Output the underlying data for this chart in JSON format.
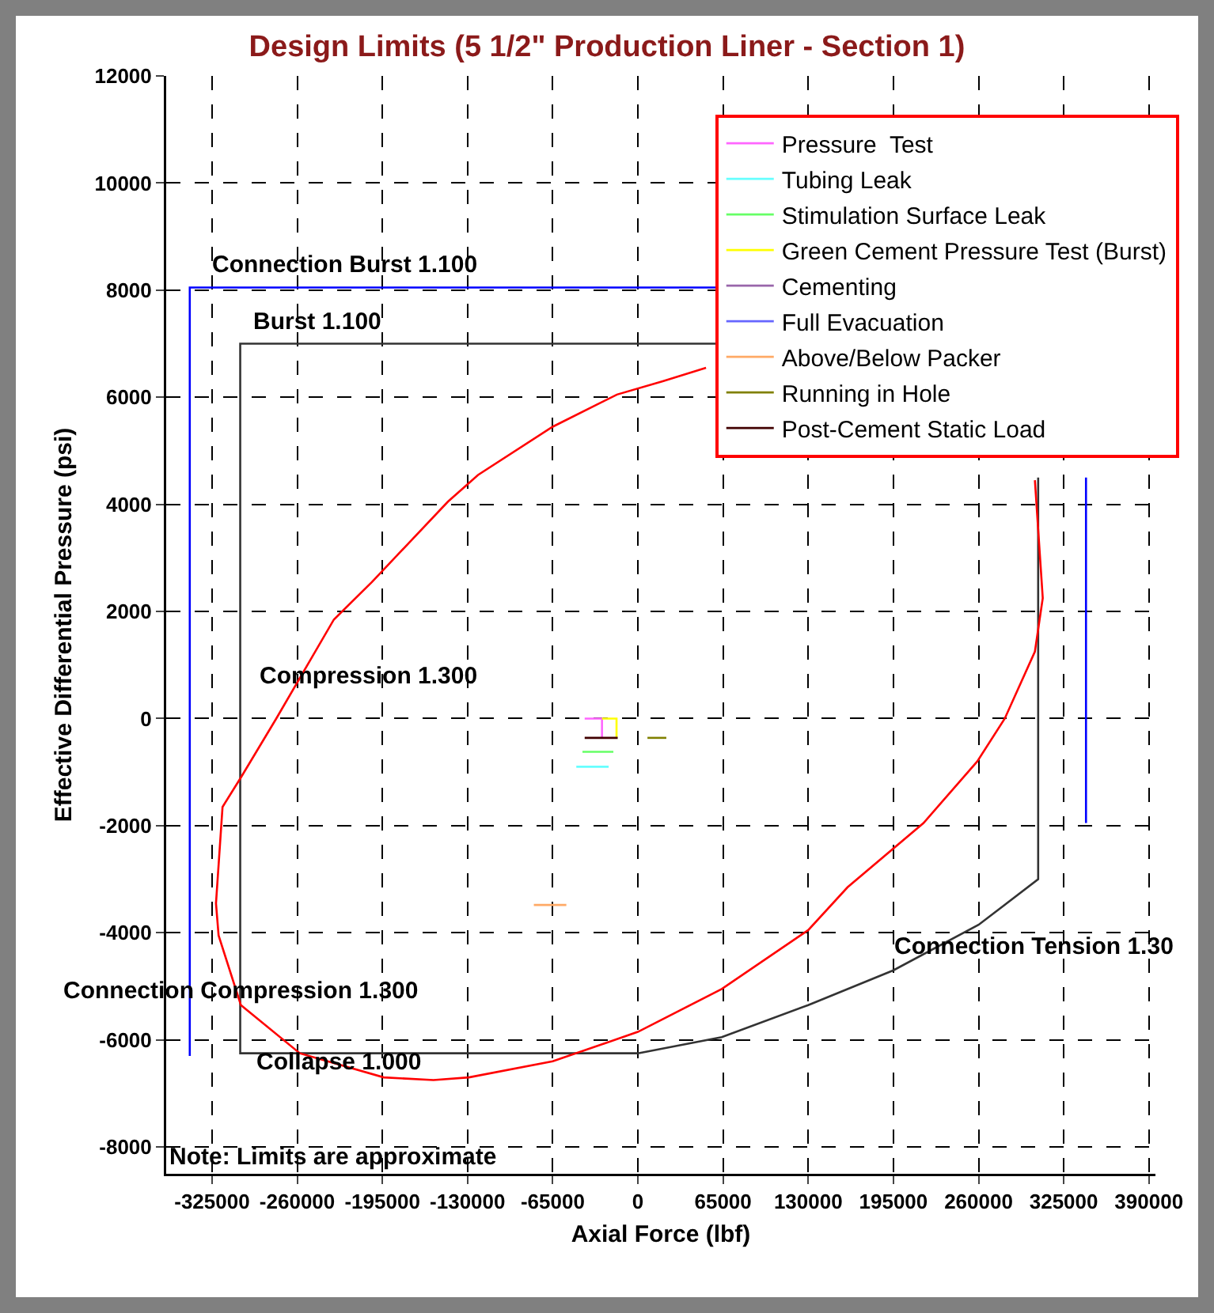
{
  "chart_data": {
    "type": "line",
    "title": "Design Limits (5 1/2\" Production Liner - Section 1)",
    "xlabel": "Axial Force (lbf)",
    "ylabel": "Effective Differential Pressure (psi)",
    "xlim": [
      -360000,
      395000
    ],
    "xticks": [
      -325000,
      -260000,
      -195000,
      -130000,
      -65000,
      0,
      65000,
      130000,
      195000,
      260000,
      325000,
      390000
    ],
    "ylim": [
      -8500,
      12000
    ],
    "yticks": [
      -8000,
      -6000,
      -4000,
      -2000,
      0,
      2000,
      4000,
      6000,
      8000,
      10000,
      12000
    ],
    "grid": true,
    "legend": "top right",
    "marker": "none",
    "line_style": "solid",
    "series": [
      {
        "color": "#0000ff",
        "x": [
          60000,
          -342000,
          -342000,
          null,
          342000,
          342000
        ],
        "values": [
          8050,
          8050,
          -6300,
          null,
          4500,
          -1950
        ]
      },
      {
        "color": "#333333",
        "x": [
          60000,
          -303500,
          -303500,
          0,
          64000,
          130000,
          195000,
          260000,
          305500,
          305500
        ],
        "values": [
          7000,
          7000,
          -6250,
          -6250,
          -5950,
          -5350,
          -4700,
          -3850,
          -3000,
          4500
        ]
      },
      {
        "color": "#ff0000",
        "x": [
          303000,
          309000,
          303000,
          280000,
          259000,
          218000,
          160000,
          130000,
          64000,
          0,
          -65000,
          -129000,
          -156000,
          -194000,
          -258000,
          -303000,
          -320000,
          -322000,
          -317000,
          -303000,
          -276000,
          -232000,
          -203000,
          -145000,
          -122000,
          -65000,
          -16000,
          19000,
          52000
        ],
        "values": [
          4450,
          2250,
          1250,
          0,
          -800,
          -1950,
          -3150,
          -3950,
          -5050,
          -5850,
          -6400,
          -6700,
          -6750,
          -6700,
          -6250,
          -5350,
          -4050,
          -3450,
          -1650,
          -1100,
          0,
          1850,
          2550,
          4050,
          4550,
          5450,
          6050,
          6300,
          6550
        ]
      },
      {
        "name": "Pressure  Test",
        "color": "#ff66ff",
        "x": [
          -40600,
          -27400,
          -27400
        ],
        "values": [
          0,
          0,
          -360
        ]
      },
      {
        "name": "Tubing Leak",
        "color": "#66ffff",
        "x": [
          -47000,
          -22300
        ],
        "values": [
          -900,
          -900
        ]
      },
      {
        "name": "Stimulation Surface Leak",
        "color": "#66ff66",
        "x": [
          -42300,
          -18700
        ],
        "values": [
          -620,
          -620
        ]
      },
      {
        "name": "Green Cement Pressure Test (Burst)",
        "color": "#ffff00",
        "x": [
          -27400,
          -16300,
          -16300
        ],
        "values": [
          0,
          0,
          -360
        ]
      },
      {
        "name": "Cementing",
        "color": "#9966aa"
      },
      {
        "name": "Full Evacuation",
        "color": "#6666ff"
      },
      {
        "name": "Above/Below Packer",
        "color": "#ffaa66",
        "x": [
          -79400,
          -54600
        ],
        "values": [
          -3480,
          -3480
        ]
      },
      {
        "name": "Running in Hole",
        "color": "#808000",
        "x": [
          7300,
          21700
        ],
        "values": [
          -360,
          -360
        ]
      },
      {
        "name": "Post-Cement Static Load",
        "color": "#400000",
        "x": [
          -40600,
          -15400
        ],
        "values": [
          -360,
          -360
        ]
      }
    ],
    "annotations": [
      {
        "text": "Connection Burst 1.100",
        "x": -223000,
        "y": 8150
      },
      {
        "text": "Burst 1.100",
        "x": -245000,
        "y": 7100
      },
      "Compression 1.300",
      {
        "text": "Connection Compression 1.300",
        "x": -303500,
        "y": -5400
      },
      "Collapse 1.000",
      "Connection Tension 1.30",
      "Note: Limits are approximate"
    ]
  }
}
